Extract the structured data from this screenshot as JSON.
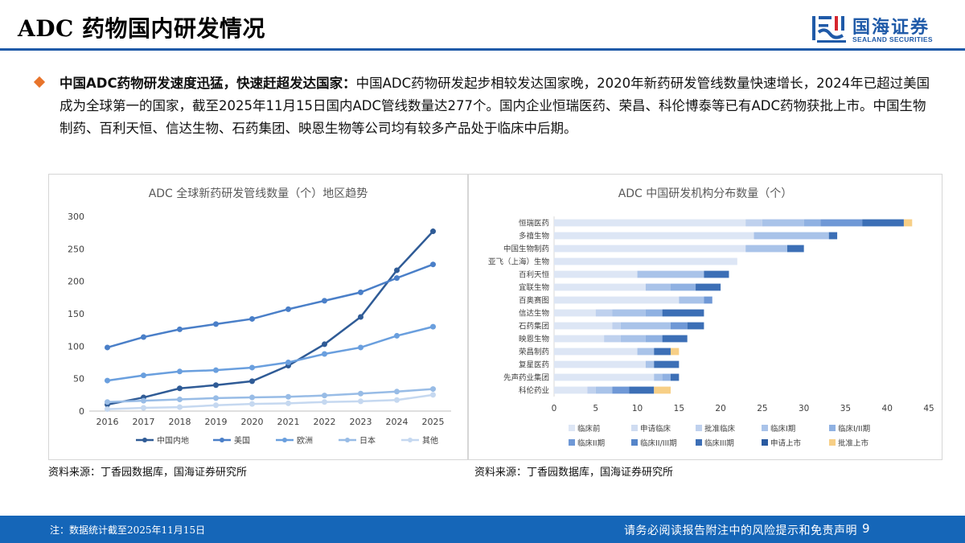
{
  "header": {
    "title": "ADC 药物国内研发情况",
    "logo_cn": "国海证券",
    "logo_en": "SEALAND SECURITIES"
  },
  "summary": {
    "lead": "中国ADC药物研发速度迅猛，快速赶超发达国家：",
    "body": "中国ADC药物研发起步相较发达国家晚，2020年新药研发管线数量快速增长，2024年已超过美国成为全球第一的国家，截至2025年11月15日国内ADC管线数量达277个。国内企业恒瑞医药、荣昌、科伦博泰等已有ADC药物获批上市。中国生物制药、百利天恒、信达生物、石药集团、映恩生物等公司均有较多产品处于临床中后期。"
  },
  "colors": {
    "brand": "#1f5aa8",
    "footer": "#1566b8",
    "bullet": "#e8742b"
  },
  "chart_data": [
    {
      "type": "line",
      "title": "ADC 全球新药研发管线数量（个）地区趋势",
      "x": [
        "2016",
        "2017",
        "2018",
        "2019",
        "2020",
        "2021",
        "2022",
        "2023",
        "2024",
        "2025"
      ],
      "ylim": [
        0,
        300
      ],
      "yticks": [
        0,
        50,
        100,
        150,
        200,
        250,
        300
      ],
      "grid": false,
      "legend_position": "bottom",
      "series": [
        {
          "name": "中国内地",
          "color": "#2f5b96",
          "values": [
            10,
            21,
            35,
            40,
            46,
            70,
            103,
            145,
            217,
            277
          ]
        },
        {
          "name": "美国",
          "color": "#4a7fc8",
          "values": [
            98,
            114,
            126,
            134,
            142,
            157,
            170,
            183,
            205,
            226
          ]
        },
        {
          "name": "欧洲",
          "color": "#6a9fde",
          "values": [
            47,
            55,
            61,
            63,
            67,
            75,
            88,
            98,
            116,
            130
          ]
        },
        {
          "name": "日本",
          "color": "#98bce6",
          "values": [
            14,
            16,
            18,
            20,
            21,
            22,
            24,
            27,
            30,
            34
          ]
        },
        {
          "name": "其他",
          "color": "#c5d8f0",
          "values": [
            3,
            5,
            6,
            9,
            11,
            12,
            14,
            15,
            17,
            25
          ]
        }
      ]
    },
    {
      "type": "bar",
      "orientation": "horizontal",
      "stacked": true,
      "title": "ADC 中国研发机构分布数量（个）",
      "xlim": [
        0,
        45
      ],
      "xticks": [
        0,
        5,
        10,
        15,
        20,
        25,
        30,
        35,
        40,
        45
      ],
      "grid": false,
      "legend_position": "bottom",
      "categories": [
        "恒瑞医药",
        "多禧生物",
        "中国生物制药",
        "亚飞（上海）生物",
        "百利天恒",
        "宜联生物",
        "百奥赛图",
        "信达生物",
        "石药集团",
        "映恩生物",
        "荣昌制药",
        "复星医药",
        "先声药业集团",
        "科伦药业"
      ],
      "series": [
        {
          "name": "临床前",
          "color": "#dde6f5",
          "values": [
            23,
            24,
            23,
            22,
            10,
            11,
            15,
            5,
            7,
            6,
            10,
            11,
            12,
            4
          ]
        },
        {
          "name": "申请临床",
          "color": "#cfdcf1",
          "values": [
            0,
            0,
            0,
            0,
            0,
            0,
            0,
            0,
            0,
            0,
            0,
            0,
            0,
            0
          ]
        },
        {
          "name": "批准临床",
          "color": "#bfd1ee",
          "values": [
            2,
            0,
            0,
            0,
            0,
            0,
            0,
            2,
            1,
            2,
            0,
            0,
            0,
            1
          ]
        },
        {
          "name": "临床I期",
          "color": "#a9c3e9",
          "values": [
            5,
            9,
            5,
            0,
            8,
            3,
            3,
            4,
            6,
            3,
            2,
            1,
            1,
            2
          ]
        },
        {
          "name": "临床I/II期",
          "color": "#8fb1e2",
          "values": [
            2,
            0,
            0,
            0,
            0,
            3,
            0,
            2,
            0,
            2,
            0,
            0,
            1,
            0
          ]
        },
        {
          "name": "临床II期",
          "color": "#6f98d6",
          "values": [
            5,
            0,
            0,
            0,
            0,
            0,
            1,
            0,
            2,
            0,
            0,
            0,
            0,
            2
          ]
        },
        {
          "name": "临床II/III期",
          "color": "#5585c9",
          "values": [
            0,
            0,
            0,
            0,
            0,
            0,
            0,
            0,
            0,
            0,
            0,
            0,
            0,
            0
          ]
        },
        {
          "name": "临床III期",
          "color": "#3c6fb6",
          "values": [
            5,
            1,
            2,
            0,
            3,
            3,
            0,
            5,
            2,
            3,
            2,
            3,
            1,
            3
          ]
        },
        {
          "name": "申请上市",
          "color": "#2a5aa0",
          "values": [
            0,
            0,
            0,
            0,
            0,
            0,
            0,
            0,
            0,
            0,
            0,
            0,
            0,
            0
          ]
        },
        {
          "name": "批准上市",
          "color": "#f7cf86",
          "values": [
            1,
            0,
            0,
            0,
            0,
            0,
            0,
            0,
            0,
            0,
            1,
            0,
            0,
            2
          ]
        }
      ]
    }
  ],
  "sources": {
    "left": "资料来源：丁香园数据库，国海证券研究所",
    "right": "资料来源：丁香园数据库，国海证券研究所"
  },
  "footer": {
    "note": "注：数据统计截至2025年11月15日",
    "disclaimer": "请务必阅读报告附注中的风险提示和免责声明",
    "page": "9"
  }
}
